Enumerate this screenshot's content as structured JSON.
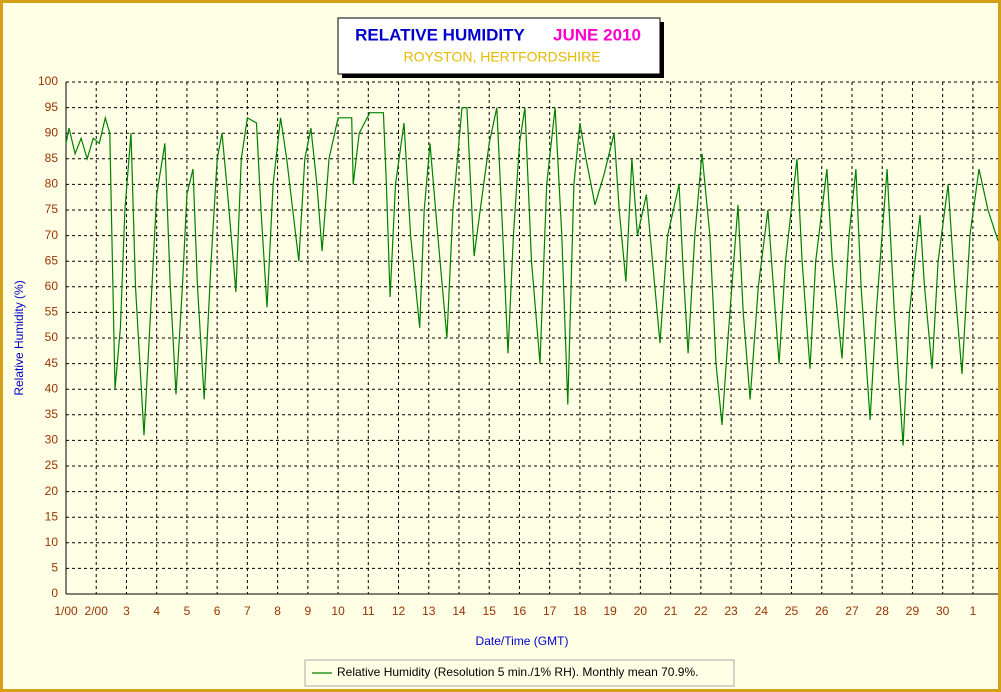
{
  "chart_data": {
    "type": "line",
    "title": "RELATIVE HUMIDITY",
    "title_period": "JUNE 2010",
    "subtitle": "ROYSTON, HERTFORDSHIRE",
    "x_label": "Date/Time (GMT)",
    "y_label": "Relative Humidity (%)",
    "xlim": [
      0,
      30.83
    ],
    "ylim": [
      0,
      100
    ],
    "xticks": [
      {
        "value": 0,
        "label": "1/00"
      },
      {
        "value": 1,
        "label": "2/00"
      },
      {
        "value": 2,
        "label": "3"
      },
      {
        "value": 3,
        "label": "4"
      },
      {
        "value": 4,
        "label": "5"
      },
      {
        "value": 5,
        "label": "6"
      },
      {
        "value": 6,
        "label": "7"
      },
      {
        "value": 7,
        "label": "8"
      },
      {
        "value": 8,
        "label": "9"
      },
      {
        "value": 9,
        "label": "10"
      },
      {
        "value": 10,
        "label": "11"
      },
      {
        "value": 11,
        "label": "12"
      },
      {
        "value": 12,
        "label": "13"
      },
      {
        "value": 13,
        "label": "14"
      },
      {
        "value": 14,
        "label": "15"
      },
      {
        "value": 15,
        "label": "16"
      },
      {
        "value": 16,
        "label": "17"
      },
      {
        "value": 17,
        "label": "18"
      },
      {
        "value": 18,
        "label": "19"
      },
      {
        "value": 19,
        "label": "20"
      },
      {
        "value": 20,
        "label": "21"
      },
      {
        "value": 21,
        "label": "22"
      },
      {
        "value": 22,
        "label": "23"
      },
      {
        "value": 23,
        "label": "24"
      },
      {
        "value": 24,
        "label": "25"
      },
      {
        "value": 25,
        "label": "26"
      },
      {
        "value": 26,
        "label": "27"
      },
      {
        "value": 27,
        "label": "28"
      },
      {
        "value": 28,
        "label": "29"
      },
      {
        "value": 29,
        "label": "30"
      },
      {
        "value": 30,
        "label": "1"
      }
    ],
    "yticks": [
      0,
      5,
      10,
      15,
      20,
      25,
      30,
      35,
      40,
      45,
      50,
      55,
      60,
      65,
      70,
      75,
      80,
      85,
      90,
      95,
      100
    ],
    "grid": true,
    "x": [
      0,
      0.1,
      0.3,
      0.5,
      0.7,
      0.9,
      1.1,
      1.3,
      1.45,
      1.62,
      1.8,
      1.95,
      2.15,
      2.3,
      2.58,
      2.8,
      3.0,
      3.27,
      3.45,
      3.64,
      3.85,
      4.0,
      4.2,
      4.35,
      4.57,
      4.8,
      5.0,
      5.16,
      5.35,
      5.62,
      5.8,
      6.0,
      6.3,
      6.45,
      6.65,
      6.85,
      7.1,
      7.3,
      7.7,
      7.9,
      8.1,
      8.3,
      8.47,
      8.7,
      9.0,
      9.45,
      9.5,
      9.7,
      10.05,
      10.5,
      10.6,
      10.72,
      10.9,
      11.18,
      11.4,
      11.7,
      11.85,
      12.04,
      12.3,
      12.6,
      12.8,
      13.1,
      13.26,
      13.5,
      13.7,
      14.0,
      14.25,
      14.45,
      14.62,
      14.8,
      15.0,
      15.18,
      15.4,
      15.68,
      15.9,
      16.18,
      16.4,
      16.6,
      16.8,
      17.0,
      17.2,
      17.5,
      17.8,
      18.13,
      18.3,
      18.52,
      18.72,
      18.9,
      19.2,
      19.65,
      19.9,
      20.28,
      20.4,
      20.58,
      20.8,
      21.04,
      21.3,
      21.5,
      21.7,
      21.9,
      22.23,
      22.4,
      22.63,
      22.9,
      23.22,
      23.4,
      23.59,
      23.8,
      24.18,
      24.35,
      24.61,
      24.8,
      25.17,
      25.35,
      25.67,
      25.9,
      26.13,
      26.3,
      26.6,
      26.8,
      27.16,
      27.4,
      27.69,
      27.9,
      28.25,
      28.4,
      28.65,
      28.85,
      29.18,
      29.4,
      29.64,
      29.9,
      30.2,
      30.5,
      30.83
    ],
    "series": [
      {
        "name": "Relative Humidity (Resolution 5 min./1% RH). Monthly mean 70.9%.",
        "color": "#008000",
        "values": [
          88,
          91,
          86,
          89,
          85,
          89,
          88,
          93,
          90,
          40,
          52,
          75,
          90,
          60,
          31,
          55,
          78,
          88,
          60,
          39,
          60,
          78,
          83,
          60,
          38,
          65,
          85,
          90,
          78,
          59,
          85,
          93,
          92,
          75,
          56,
          80,
          93,
          85,
          65,
          85,
          91,
          80,
          67,
          85,
          93,
          93,
          80,
          90,
          94,
          94,
          80,
          58,
          80,
          92,
          70,
          52,
          75,
          88,
          70,
          50,
          75,
          95,
          95,
          66,
          75,
          88,
          95,
          70,
          47,
          70,
          88,
          95,
          65,
          45,
          80,
          95,
          70,
          37,
          80,
          92,
          85,
          76,
          82,
          90,
          75,
          61,
          85,
          70,
          78,
          49,
          70,
          80,
          65,
          47,
          70,
          86,
          70,
          45,
          33,
          50,
          76,
          55,
          38,
          60,
          75,
          60,
          45,
          65,
          85,
          65,
          44,
          65,
          83,
          65,
          46,
          70,
          83,
          60,
          34,
          55,
          83,
          55,
          29,
          55,
          74,
          60,
          44,
          65,
          80,
          60,
          43,
          70,
          83,
          75,
          69
        ]
      }
    ]
  }
}
